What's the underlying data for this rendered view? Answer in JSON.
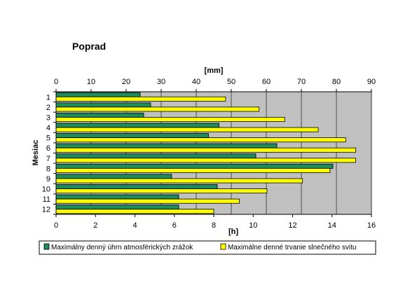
{
  "chart_data": {
    "type": "bar",
    "orientation": "horizontal",
    "title": "Poprad",
    "ylabel": "Mesiac",
    "categories": [
      "1",
      "2",
      "3",
      "4",
      "5",
      "6",
      "7",
      "8",
      "9",
      "10",
      "11",
      "12"
    ],
    "axes": {
      "top": {
        "label": "[mm]",
        "range": [
          0,
          90
        ],
        "ticks": [
          0,
          10,
          20,
          30,
          40,
          50,
          60,
          70,
          80,
          90
        ]
      },
      "bottom": {
        "label": "[h]",
        "range": [
          0,
          16
        ],
        "ticks": [
          0,
          2,
          4,
          6,
          8,
          10,
          12,
          14,
          16
        ]
      }
    },
    "grid": true,
    "legend_position": "bottom",
    "series": [
      {
        "name": "Maximálny denný úhrn atmosférických zrážok",
        "axis": "top",
        "color": "#1f8a5a",
        "values": [
          24.0,
          27.0,
          25.0,
          46.5,
          43.5,
          63.0,
          57.0,
          79.0,
          33.0,
          46.0,
          35.0,
          35.0
        ]
      },
      {
        "name": "Maximálne denné trvanie slnečného svitu",
        "axis": "bottom",
        "color": "#ffff00",
        "values": [
          8.6,
          10.3,
          11.6,
          13.3,
          14.7,
          15.2,
          15.2,
          13.9,
          12.5,
          10.7,
          9.3,
          8.0
        ]
      }
    ]
  }
}
